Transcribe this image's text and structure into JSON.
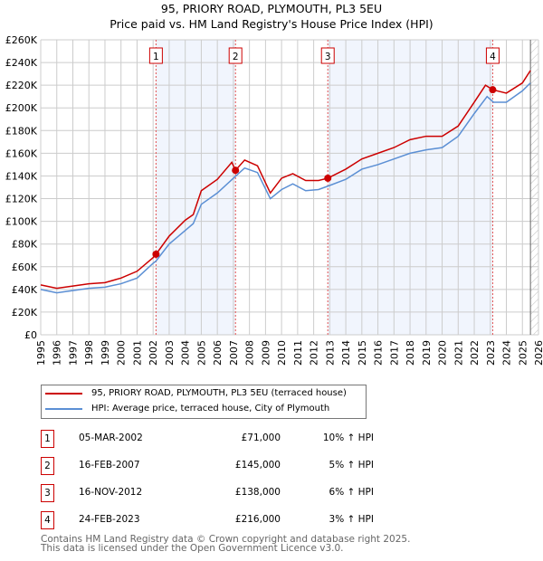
{
  "title": "95, PRIORY ROAD, PLYMOUTH, PL3 5EU",
  "subtitle": "Price paid vs. HM Land Registry's House Price Index (HPI)",
  "chart_data": {
    "type": "line",
    "title": "95, PRIORY ROAD, PLYMOUTH, PL3 5EU",
    "subtitle": "Price paid vs. HM Land Registry's House Price Index (HPI)",
    "xlim": [
      1995,
      2026
    ],
    "ylim": [
      0,
      260000
    ],
    "x_ticks": [
      "1995",
      "1996",
      "1997",
      "1998",
      "1999",
      "2000",
      "2001",
      "2002",
      "2003",
      "2004",
      "2005",
      "2006",
      "2007",
      "2008",
      "2009",
      "2010",
      "2011",
      "2012",
      "2013",
      "2014",
      "2015",
      "2016",
      "2017",
      "2018",
      "2019",
      "2020",
      "2021",
      "2022",
      "2023",
      "2024",
      "2025",
      "2026"
    ],
    "y_ticks": [
      {
        "v": 0,
        "label": "£0"
      },
      {
        "v": 20000,
        "label": "£20K"
      },
      {
        "v": 40000,
        "label": "£40K"
      },
      {
        "v": 60000,
        "label": "£60K"
      },
      {
        "v": 80000,
        "label": "£80K"
      },
      {
        "v": 100000,
        "label": "£100K"
      },
      {
        "v": 120000,
        "label": "£120K"
      },
      {
        "v": 140000,
        "label": "£140K"
      },
      {
        "v": 160000,
        "label": "£160K"
      },
      {
        "v": 180000,
        "label": "£180K"
      },
      {
        "v": 200000,
        "label": "£200K"
      },
      {
        "v": 220000,
        "label": "£220K"
      },
      {
        "v": 240000,
        "label": "£240K"
      },
      {
        "v": 260000,
        "label": "£260K"
      }
    ],
    "grid": true,
    "series": [
      {
        "name": "95, PRIORY ROAD, PLYMOUTH, PL3 5EU (terraced house)",
        "color": "#cc0000",
        "x": [
          1995,
          1996,
          1997,
          1998,
          1999,
          2000,
          2001,
          2002,
          2002.18,
          2003,
          2004,
          2004.5,
          2005,
          2006,
          2006.9,
          2007.13,
          2007.7,
          2008.5,
          2009.3,
          2010,
          2010.7,
          2011.5,
          2012.3,
          2012.88,
          2014,
          2015,
          2016,
          2017,
          2018,
          2019,
          2020,
          2021,
          2022,
          2022.7,
          2023.15,
          2024,
          2025,
          2025.5
        ],
        "y": [
          44000,
          41000,
          43000,
          45000,
          46000,
          50000,
          56000,
          68000,
          71000,
          87000,
          101000,
          106000,
          127000,
          137000,
          152000,
          145000,
          154000,
          149000,
          125000,
          138000,
          142000,
          136000,
          136000,
          138000,
          146000,
          155000,
          160000,
          165000,
          172000,
          175000,
          175000,
          184000,
          205000,
          220000,
          216000,
          213000,
          222000,
          233000
        ]
      },
      {
        "name": "HPI: Average price, terraced house, City of Plymouth",
        "color": "#5b8fd4",
        "x": [
          1995,
          1996,
          1997,
          1998,
          1999,
          2000,
          2001,
          2002,
          2002.18,
          2003,
          2004,
          2004.5,
          2005,
          2006,
          2007,
          2007.7,
          2008.5,
          2009.3,
          2010,
          2010.7,
          2011.5,
          2012.3,
          2012.88,
          2014,
          2015,
          2016,
          2017,
          2018,
          2019,
          2020,
          2021,
          2022,
          2022.8,
          2023.2,
          2024,
          2025,
          2025.5
        ],
        "y": [
          40000,
          37000,
          39000,
          41000,
          42000,
          45000,
          50000,
          63000,
          65000,
          80000,
          92000,
          98000,
          115000,
          125000,
          138000,
          147000,
          143000,
          120000,
          128000,
          133000,
          127000,
          128000,
          131000,
          137000,
          146000,
          150000,
          155000,
          160000,
          163000,
          165000,
          175000,
          195000,
          210000,
          205000,
          205000,
          215000,
          222000
        ]
      }
    ],
    "sales": [
      {
        "n": "1",
        "x": 2002.18,
        "y": 71000,
        "date": "05-MAR-2002",
        "price": "£71,000",
        "hpi": "10% ↑ HPI"
      },
      {
        "n": "2",
        "x": 2007.13,
        "y": 145000,
        "date": "16-FEB-2007",
        "price": "£145,000",
        "hpi": "5% ↑ HPI"
      },
      {
        "n": "3",
        "x": 2012.88,
        "y": 138000,
        "date": "16-NOV-2012",
        "price": "£138,000",
        "hpi": "6% ↑ HPI"
      },
      {
        "n": "4",
        "x": 2023.15,
        "y": 216000,
        "date": "24-FEB-2023",
        "price": "£216,000",
        "hpi": "3% ↑ HPI"
      }
    ],
    "shaded": [
      [
        2002.18,
        2007.13
      ],
      [
        2012.88,
        2023.15
      ]
    ],
    "forecast_start": 2025.5,
    "legend_position": "below"
  },
  "footer": [
    "Contains HM Land Registry data © Crown copyright and database right 2025.",
    "This data is licensed under the Open Government Licence v3.0."
  ]
}
